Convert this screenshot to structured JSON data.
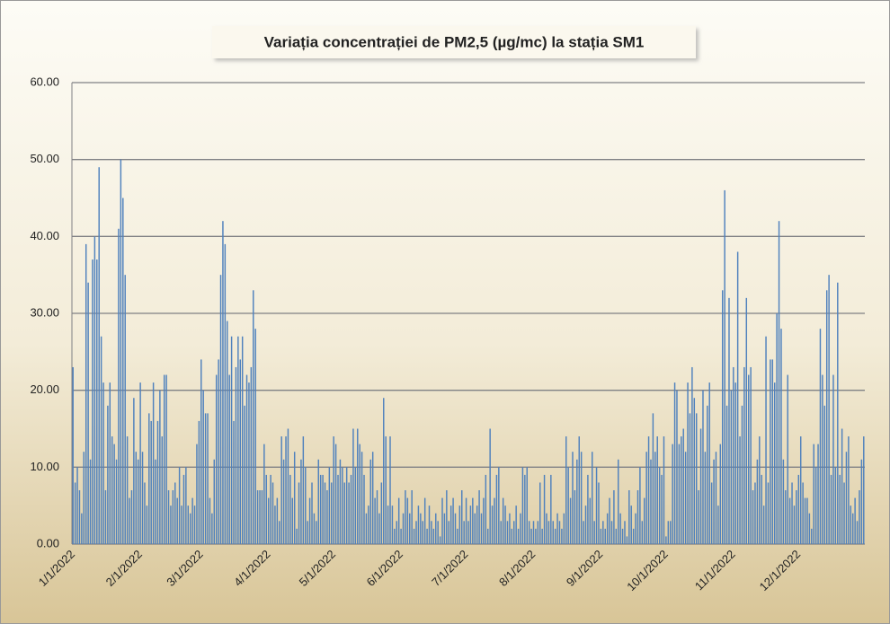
{
  "chart_data": {
    "type": "bar",
    "title": "Variația concentrației de PM2,5 (µg/mc) la stația SM1",
    "color": "#4f81bd",
    "grid": true,
    "ylim": [
      0,
      60
    ],
    "yticks": [
      {
        "value": 0,
        "label": "0.00"
      },
      {
        "value": 10,
        "label": "10.00"
      },
      {
        "value": 20,
        "label": "20.00"
      },
      {
        "value": 30,
        "label": "30.00"
      },
      {
        "value": 40,
        "label": "40.00"
      },
      {
        "value": 50,
        "label": "50.00"
      },
      {
        "value": 60,
        "label": "60.00"
      }
    ],
    "categories": [
      "1/1/2022",
      null,
      null,
      null,
      null,
      null,
      null,
      null,
      null,
      null,
      null,
      null,
      null,
      null,
      null,
      null,
      null,
      null,
      null,
      null,
      null,
      null,
      null,
      null,
      null,
      null,
      null,
      null,
      null,
      null,
      null,
      "2/1/2022",
      null,
      null,
      null,
      null,
      null,
      null,
      null,
      null,
      null,
      null,
      null,
      null,
      null,
      null,
      null,
      null,
      null,
      null,
      null,
      null,
      null,
      null,
      null,
      null,
      null,
      null,
      null,
      "3/1/2022",
      null,
      null,
      null,
      null,
      null,
      null,
      null,
      null,
      null,
      null,
      null,
      null,
      null,
      null,
      null,
      null,
      null,
      null,
      null,
      null,
      null,
      null,
      null,
      null,
      null,
      null,
      null,
      null,
      null,
      null,
      "4/1/2022",
      null,
      null,
      null,
      null,
      null,
      null,
      null,
      null,
      null,
      null,
      null,
      null,
      null,
      null,
      null,
      null,
      null,
      null,
      null,
      null,
      null,
      null,
      null,
      null,
      null,
      null,
      null,
      null,
      null,
      "5/1/2022",
      null,
      null,
      null,
      null,
      null,
      null,
      null,
      null,
      null,
      null,
      null,
      null,
      null,
      null,
      null,
      null,
      null,
      null,
      null,
      null,
      null,
      null,
      null,
      null,
      null,
      null,
      null,
      null,
      null,
      null,
      "6/1/2022",
      null,
      null,
      null,
      null,
      null,
      null,
      null,
      null,
      null,
      null,
      null,
      null,
      null,
      null,
      null,
      null,
      null,
      null,
      null,
      null,
      null,
      null,
      null,
      null,
      null,
      null,
      null,
      null,
      null,
      "7/1/2022",
      null,
      null,
      null,
      null,
      null,
      null,
      null,
      null,
      null,
      null,
      null,
      null,
      null,
      null,
      null,
      null,
      null,
      null,
      null,
      null,
      null,
      null,
      null,
      null,
      null,
      null,
      null,
      null,
      null,
      null,
      "8/1/2022",
      null,
      null,
      null,
      null,
      null,
      null,
      null,
      null,
      null,
      null,
      null,
      null,
      null,
      null,
      null,
      null,
      null,
      null,
      null,
      null,
      null,
      null,
      null,
      null,
      null,
      null,
      null,
      null,
      null,
      null,
      "9/1/2022",
      null,
      null,
      null,
      null,
      null,
      null,
      null,
      null,
      null,
      null,
      null,
      null,
      null,
      null,
      null,
      null,
      null,
      null,
      null,
      null,
      null,
      null,
      null,
      null,
      null,
      null,
      null,
      null,
      null,
      "10/1/2022",
      null,
      null,
      null,
      null,
      null,
      null,
      null,
      null,
      null,
      null,
      null,
      null,
      null,
      null,
      null,
      null,
      null,
      null,
      null,
      null,
      null,
      null,
      null,
      null,
      null,
      null,
      null,
      null,
      null,
      null,
      "11/1/2022",
      null,
      null,
      null,
      null,
      null,
      null,
      null,
      null,
      null,
      null,
      null,
      null,
      null,
      null,
      null,
      null,
      null,
      null,
      null,
      null,
      null,
      null,
      null,
      null,
      null,
      null,
      null,
      null,
      null,
      "12/1/2022",
      null,
      null,
      null,
      null,
      null,
      null,
      null,
      null,
      null,
      null,
      null,
      null,
      null,
      null,
      null,
      null,
      null,
      null,
      null,
      null,
      null,
      null,
      null,
      null,
      null,
      null,
      null,
      null,
      null,
      null
    ],
    "values": [
      23,
      8,
      10,
      7,
      4,
      12,
      39,
      34,
      11,
      37,
      40,
      37,
      49,
      27,
      21,
      7,
      18,
      21,
      14,
      13,
      11,
      41,
      50,
      45,
      35,
      14,
      6,
      7,
      19,
      12,
      11,
      21,
      12,
      8,
      5,
      17,
      16,
      21,
      11,
      16,
      20,
      14,
      22,
      22,
      7,
      5,
      7,
      8,
      6,
      10,
      5,
      9,
      10,
      5,
      4,
      6,
      5,
      13,
      16,
      24,
      20,
      17,
      17,
      6,
      4,
      11,
      22,
      24,
      35,
      42,
      39,
      29,
      22,
      27,
      16,
      23,
      27,
      24,
      27,
      18,
      22,
      21,
      23,
      33,
      28,
      7,
      7,
      7,
      13,
      9,
      6,
      9,
      8,
      5,
      6,
      3,
      14,
      11,
      14,
      15,
      9,
      6,
      12,
      2,
      8,
      11,
      14,
      10,
      3,
      6,
      8,
      4,
      3,
      11,
      9,
      9,
      8,
      7,
      10,
      8,
      14,
      13,
      9,
      11,
      10,
      8,
      10,
      8,
      9,
      15,
      10,
      15,
      13,
      12,
      9,
      4,
      5,
      11,
      12,
      6,
      7,
      4,
      8,
      19,
      14,
      5,
      14,
      5,
      2,
      3,
      6,
      2,
      4,
      7,
      6,
      4,
      7,
      2,
      3,
      5,
      4,
      3,
      6,
      2,
      5,
      3,
      2,
      4,
      3,
      1,
      6,
      4,
      7,
      3,
      5,
      6,
      4,
      2,
      5,
      7,
      3,
      6,
      3,
      5,
      6,
      4,
      5,
      7,
      4,
      6,
      9,
      2,
      15,
      5,
      6,
      9,
      10,
      3,
      6,
      5,
      3,
      4,
      2,
      3,
      5,
      2,
      4,
      10,
      9,
      10,
      3,
      2,
      3,
      2,
      3,
      8,
      2,
      9,
      4,
      3,
      9,
      3,
      2,
      4,
      3,
      2,
      4,
      14,
      10,
      6,
      12,
      7,
      11,
      14,
      12,
      3,
      5,
      9,
      6,
      12,
      3,
      10,
      8,
      2,
      3,
      2,
      4,
      6,
      3,
      7,
      2,
      11,
      4,
      2,
      3,
      1,
      7,
      5,
      2,
      4,
      7,
      10,
      3,
      6,
      12,
      14,
      11,
      17,
      12,
      14,
      10,
      9,
      14,
      1,
      3,
      3,
      13,
      21,
      20,
      13,
      14,
      15,
      12,
      21,
      17,
      23,
      19,
      17,
      7,
      15,
      20,
      12,
      18,
      21,
      8,
      11,
      12,
      5,
      13,
      33,
      46,
      18,
      32,
      20,
      23,
      21,
      38,
      14,
      18,
      23,
      32,
      22,
      23,
      7,
      8,
      11,
      14,
      9,
      5,
      27,
      8,
      24,
      24,
      21,
      30,
      42,
      28,
      11,
      7,
      22,
      6,
      8,
      5,
      7,
      9,
      14,
      8,
      6,
      6,
      4,
      2,
      13,
      10,
      13,
      28,
      22,
      18,
      33,
      35,
      9,
      22,
      10,
      34,
      9,
      15,
      8,
      12,
      14,
      5,
      4,
      6,
      3,
      7,
      11,
      14
    ]
  }
}
